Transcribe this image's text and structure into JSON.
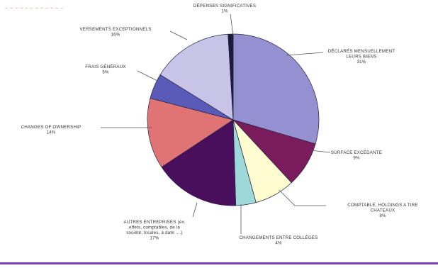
{
  "header": {
    "title": "............"
  },
  "colors": {
    "accent_rule": "#7b3fc4",
    "title": "#e8241a"
  },
  "chart_data": {
    "type": "pie",
    "start": "top",
    "direction": "clockwise",
    "slices": [
      {
        "label": [
          "DÉCLARÉS MENSUELLEMENT",
          "LEURS BIENS"
        ],
        "pct_label": "31%",
        "value": 31,
        "color": "#9590d0"
      },
      {
        "label": [
          "SURFACE EXCÉDANTE"
        ],
        "pct_label": "9%",
        "value": 9,
        "color": "#7a1c5c"
      },
      {
        "label": [
          "COMPTABLE, HOLDINGS A TIRE",
          "CHATEAUX"
        ],
        "pct_label": "8%",
        "value": 8,
        "color": "#fffdd0"
      },
      {
        "label": [
          "CHANGEMENTS ENTRE COLLÈGES"
        ],
        "pct_label": "4%",
        "value": 4,
        "color": "#9ed8d8"
      },
      {
        "label": [
          "AUTRES ENTREPRISES (ex.",
          "effets, comptables, de la",
          "société, locales, à date ....)"
        ],
        "pct_label": "17%",
        "value": 17,
        "color": "#4a0f5c"
      },
      {
        "label": [
          "CHANGES OF OWNERSHIP"
        ],
        "pct_label": "14%",
        "value": 14,
        "color": "#e07474"
      },
      {
        "label": [
          "FRAIS GÉNÉRAUX"
        ],
        "pct_label": "5%",
        "value": 5,
        "color": "#5a5ab8"
      },
      {
        "label": [
          "VERSEMENTS EXCEPTIONNELS"
        ],
        "pct_label": "16%",
        "value": 16,
        "color": "#c8c4e8"
      },
      {
        "label": [
          "DÉPENSES SIGNIFICATIVES"
        ],
        "pct_label": "1%",
        "value": 1,
        "color": "#1a1a3a"
      }
    ]
  }
}
